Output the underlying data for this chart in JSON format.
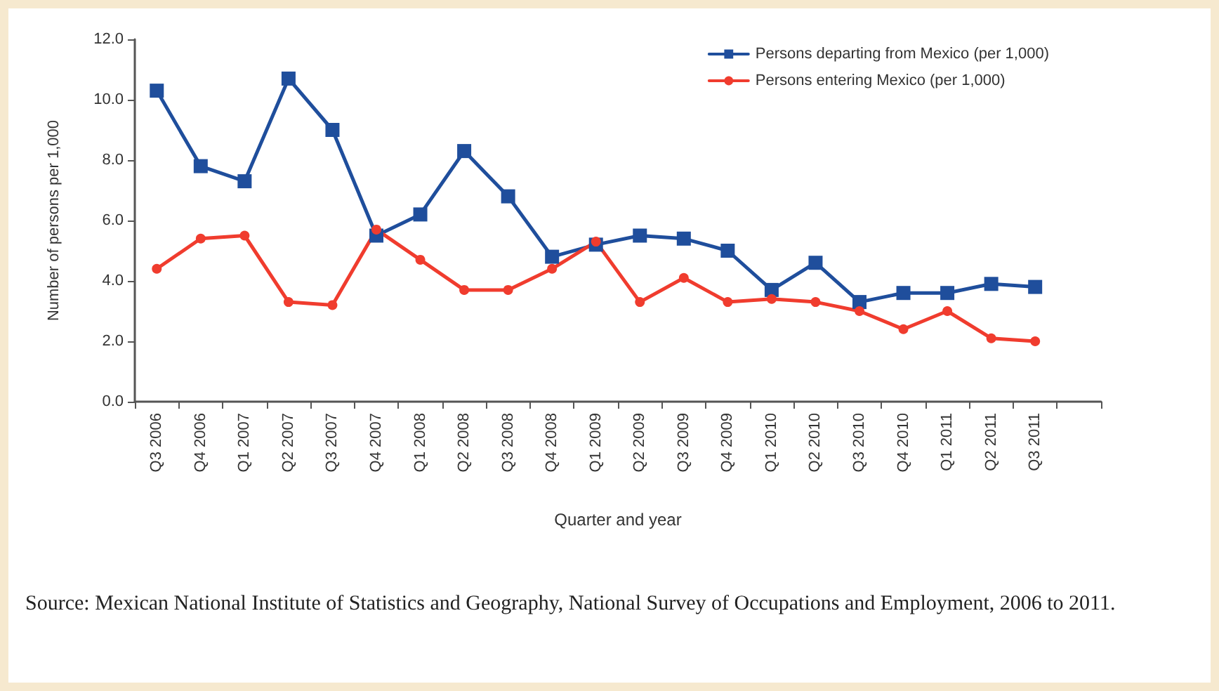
{
  "chart_data": {
    "type": "line",
    "xlabel": "Quarter and year",
    "ylabel": "Number of persons per 1,000",
    "categories": [
      "Q3 2006",
      "Q4 2006",
      "Q1 2007",
      "Q2 2007",
      "Q3 2007",
      "Q4 2007",
      "Q1 2008",
      "Q2 2008",
      "Q3 2008",
      "Q4 2008",
      "Q1 2009",
      "Q2 2009",
      "Q3 2009",
      "Q4 2009",
      "Q1 2010",
      "Q2 2010",
      "Q3 2010",
      "Q4 2010",
      "Q1 2011",
      "Q2 2011",
      "Q3 2011",
      null
    ],
    "series": [
      {
        "name": "Persons departing from Mexico (per 1,000)",
        "color": "#1f4e9c",
        "marker": "square",
        "values": [
          10.3,
          7.8,
          7.3,
          10.7,
          9.0,
          5.5,
          6.2,
          8.3,
          6.8,
          4.8,
          5.2,
          5.5,
          5.4,
          5.0,
          3.7,
          4.6,
          3.3,
          3.6,
          3.6,
          3.9,
          3.8,
          null
        ]
      },
      {
        "name": "Persons entering Mexico (per 1,000)",
        "color": "#f03c2e",
        "marker": "circle",
        "values": [
          4.4,
          5.4,
          5.5,
          3.3,
          3.2,
          5.7,
          4.7,
          3.7,
          3.7,
          4.4,
          5.3,
          3.3,
          4.1,
          3.3,
          3.4,
          3.3,
          3.0,
          2.4,
          3.0,
          2.1,
          2.0,
          null
        ]
      }
    ],
    "ylim": [
      0,
      12
    ],
    "yticks": [
      {
        "value": 0,
        "label": "0.0"
      },
      {
        "value": 2,
        "label": "2.0"
      },
      {
        "value": 4,
        "label": "4.0"
      },
      {
        "value": 6,
        "label": "6.0"
      },
      {
        "value": 8,
        "label": "8.0"
      },
      {
        "value": 10,
        "label": "10.0"
      },
      {
        "value": 12,
        "label": "12.0"
      }
    ],
    "grid": false,
    "legend": "top right",
    "line_style": "solid",
    "annotations": [
      "Source: Mexican National Institute of Statistics and Geography, National Survey of Occupations and Employment, 2006 to 2011."
    ]
  }
}
